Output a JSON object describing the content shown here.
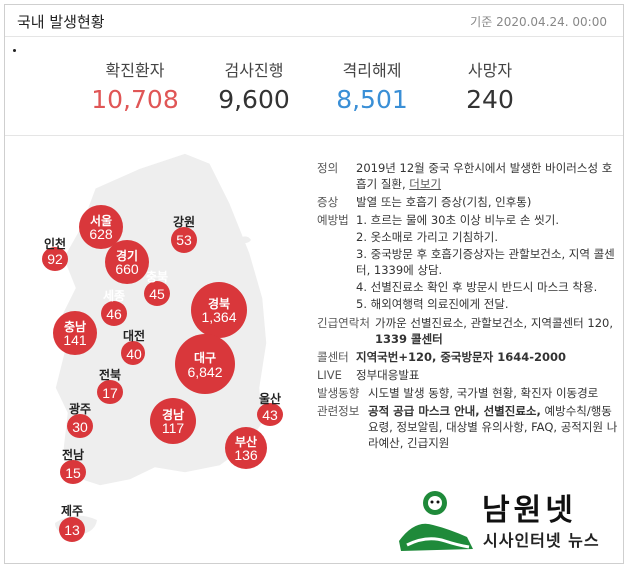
{
  "header": {
    "title": "국내 발생현황",
    "date": "기준 2020.04.24. 00:00"
  },
  "stats": [
    {
      "label": "확진환자",
      "value": "10,708"
    },
    {
      "label": "검사진행",
      "value": "9,600"
    },
    {
      "label": "격리해제",
      "value": "8,501"
    },
    {
      "label": "사망자",
      "value": "240"
    }
  ],
  "colors": {
    "confirmed": "#e05656",
    "released": "#3a8fd6",
    "region_circle": "#d9373b",
    "map_fill": "#eeeeee"
  },
  "regions": [
    {
      "name": "서울",
      "value": "628"
    },
    {
      "name": "강원",
      "value": "53"
    },
    {
      "name": "인천",
      "value": "92"
    },
    {
      "name": "경기",
      "value": "660"
    },
    {
      "name": "충북",
      "value": "45"
    },
    {
      "name": "세종",
      "value": "46"
    },
    {
      "name": "경북",
      "value": "1,364"
    },
    {
      "name": "충남",
      "value": "141"
    },
    {
      "name": "대전",
      "value": "40"
    },
    {
      "name": "대구",
      "value": "6,842"
    },
    {
      "name": "전북",
      "value": "17"
    },
    {
      "name": "울산",
      "value": "43"
    },
    {
      "name": "광주",
      "value": "30"
    },
    {
      "name": "경남",
      "value": "117"
    },
    {
      "name": "부산",
      "value": "136"
    },
    {
      "name": "전남",
      "value": "15"
    },
    {
      "name": "제주",
      "value": "13"
    }
  ],
  "info": {
    "definition": {
      "key": "정의",
      "text": "2019년 12월 중국 우한시에서 발생한 바이러스성 호흡기 질환,",
      "more": "더보기"
    },
    "symptoms": {
      "key": "증상",
      "text": "발열 또는 호흡기 증상(기침, 인후통)"
    },
    "prevention": {
      "key": "예방법",
      "items": [
        "1. 흐르는 물에 30초 이상 비누로 손 씻기.",
        "2. 옷소매로 가리고 기침하기.",
        "3. 중국방문 후 호흡기증상자는 관할보건소, 지역 콜센터, 1339에 상담.",
        "4. 선별진료소 확인 후 방문시 반드시 마스크 착용.",
        "5. 해외여행력 의료진에게 전달."
      ]
    },
    "contact": {
      "key": "긴급연락처",
      "text": "가까운 선별진료소, 관할보건소, 지역콜센터 120,",
      "bold": "1339 콜센터"
    },
    "callcenter": {
      "key": "콜센터",
      "text": "지역국번+120, 중국방문자 1644-2000"
    },
    "live": {
      "key": "LIVE",
      "text": "정부대응발표"
    },
    "trends": {
      "key": "발생동향",
      "text": "시도별 발생 동향, 국가별 현황, 확진자 이동경로"
    },
    "related": {
      "key": "관련정보",
      "bold": "공적 공급 마스크 안내, 선별진료소,",
      "text": "예방수칙/행동요령, 정보알림, 대상별 유의사항, FAQ, 공적지원 나라예산, 긴급지원"
    }
  },
  "logo": {
    "name": "남원넷",
    "subtitle": "시사인터넷 뉴스"
  }
}
